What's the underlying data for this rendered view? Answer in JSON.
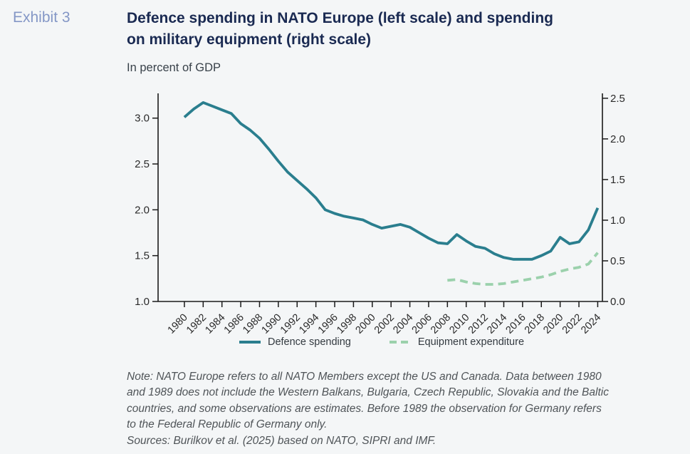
{
  "header": {
    "exhibit_label": "Exhibit 3",
    "title_lines": [
      "Defence spending in NATO Europe (left scale) and spending",
      "on military equipment (right scale)"
    ],
    "subtitle": "In percent of GDP"
  },
  "note": {
    "lines": [
      "Note: NATO Europe refers to all NATO Members except the US and Canada. Data between 1980",
      "and 1989 does not include the Western Balkans, Bulgaria, Czech Republic, Slovakia and the Baltic",
      "countries, and some observations are estimates. Before 1989 the observation for Germany refers",
      "to the Federal Republic of Germany only.",
      "Sources: Burilkov et al. (2025) based on NATO, SIPRI and IMF."
    ]
  },
  "colors": {
    "background": "#f4f6f7",
    "title": "#1a2a52",
    "exhibit_label": "#8497c6",
    "axis": "#1a1a1a",
    "tick_text": "#2a2a2a",
    "defence_line": "#2a7e8e",
    "equipment_line": "#9bd1ac"
  },
  "chart_data": {
    "type": "line",
    "title": "Defence spending in NATO Europe (left scale) and spending on military equipment (right scale)",
    "unit": "In percent of GDP",
    "grid": false,
    "legend_position": "bottom-center",
    "x_range": [
      1977.2,
      2024.5
    ],
    "x_ticks": [
      1980,
      1982,
      1984,
      1986,
      1988,
      1990,
      1992,
      1994,
      1996,
      1998,
      2000,
      2002,
      2004,
      2006,
      2008,
      2010,
      2012,
      2014,
      2016,
      2018,
      2020,
      2022,
      2024
    ],
    "left_axis": {
      "ticks": [
        1.0,
        1.5,
        2.0,
        2.5,
        3.0
      ],
      "range": [
        1.0,
        3.27
      ]
    },
    "right_axis": {
      "ticks": [
        0.0,
        0.5,
        1.0,
        1.5,
        2.0,
        2.5
      ],
      "range": [
        0.0,
        2.56
      ]
    },
    "series": [
      {
        "name": "Defence spending",
        "axis": "left",
        "color": "#2a7e8e",
        "dash": "",
        "x": [
          1980,
          1981,
          1982,
          1983,
          1984,
          1985,
          1986,
          1987,
          1988,
          1989,
          1990,
          1991,
          1992,
          1993,
          1994,
          1995,
          1996,
          1997,
          1998,
          1999,
          2000,
          2001,
          2002,
          2003,
          2004,
          2005,
          2006,
          2007,
          2008,
          2009,
          2010,
          2011,
          2012,
          2013,
          2014,
          2015,
          2016,
          2017,
          2018,
          2019,
          2020,
          2021,
          2022,
          2023,
          2024
        ],
        "values": [
          3.01,
          3.1,
          3.17,
          3.13,
          3.09,
          3.05,
          2.94,
          2.87,
          2.78,
          2.66,
          2.53,
          2.41,
          2.32,
          2.23,
          2.13,
          2.0,
          1.96,
          1.93,
          1.91,
          1.89,
          1.84,
          1.8,
          1.82,
          1.84,
          1.81,
          1.75,
          1.69,
          1.64,
          1.63,
          1.73,
          1.66,
          1.6,
          1.58,
          1.52,
          1.48,
          1.46,
          1.46,
          1.46,
          1.5,
          1.55,
          1.7,
          1.63,
          1.65,
          1.78,
          2.02
        ]
      },
      {
        "name": "Equipment expenditure",
        "axis": "right",
        "color": "#9bd1ac",
        "dash": "11 7",
        "x": [
          2008,
          2009,
          2010,
          2011,
          2012,
          2013,
          2014,
          2015,
          2016,
          2017,
          2018,
          2019,
          2020,
          2021,
          2022,
          2023,
          2024
        ],
        "values": [
          0.26,
          0.27,
          0.24,
          0.22,
          0.21,
          0.21,
          0.22,
          0.24,
          0.26,
          0.28,
          0.3,
          0.33,
          0.37,
          0.4,
          0.42,
          0.46,
          0.6
        ]
      }
    ]
  }
}
